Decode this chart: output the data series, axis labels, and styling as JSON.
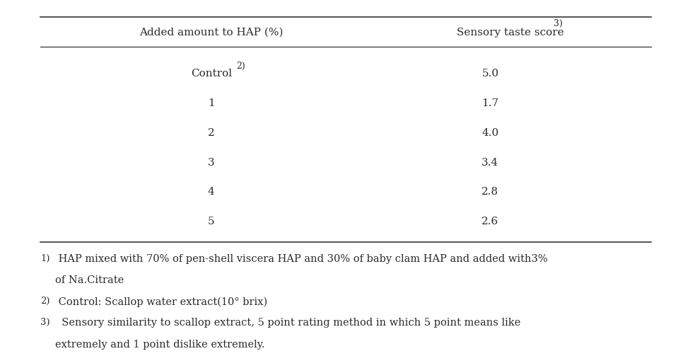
{
  "col1_header": "Added amount to HAP (%)",
  "col2_header": "Sensory taste score",
  "col2_header_superscript": "3)",
  "rows": [
    {
      "col1_main": "Control",
      "col1_sup": "2)",
      "col2": "5.0"
    },
    {
      "col1_main": "1",
      "col1_sup": "",
      "col2": "1.7"
    },
    {
      "col1_main": "2",
      "col1_sup": "",
      "col2": "4.0"
    },
    {
      "col1_main": "3",
      "col1_sup": "",
      "col2": "3.4"
    },
    {
      "col1_main": "4",
      "col1_sup": "",
      "col2": "2.8"
    },
    {
      "col1_main": "5",
      "col1_sup": "",
      "col2": "2.6"
    }
  ],
  "footnotes": [
    {
      "sup": "1)",
      "text": " HAP mixed with 70% of pen-shell viscera HAP and 30% of baby clam HAP and added with3%"
    },
    {
      "sup": "",
      "text": "of Na.Citrate"
    },
    {
      "sup": "2)",
      "text": " Control: Scallop water extract(10° brix)"
    },
    {
      "sup": "3)",
      "text": "  Sensory similarity to scallop extract, 5 point rating method in which 5 point means like"
    },
    {
      "sup": "",
      "text": "extremely and 1 point dislike extremely."
    }
  ],
  "bg_color": "#ffffff",
  "text_color": "#2b2b2b",
  "line_color": "#444444",
  "font_size": 11,
  "footnote_font_size": 10.5
}
